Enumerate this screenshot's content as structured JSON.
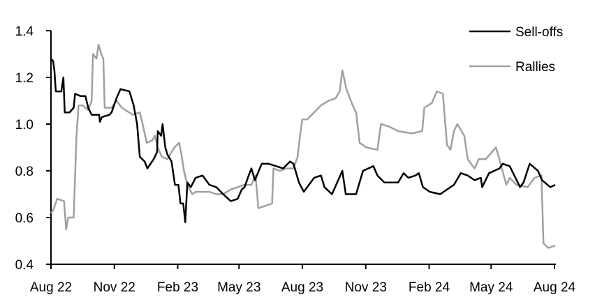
{
  "chart_data": {
    "type": "line",
    "title": "",
    "xlabel": "",
    "ylabel": "",
    "ylim": [
      0.4,
      1.4
    ],
    "yticks": [
      "0.4",
      "0.6",
      "0.8",
      "1.0",
      "1.2",
      "1.4"
    ],
    "xlim": [
      "2022-08-01",
      "2024-08-01"
    ],
    "xticks": [
      {
        "date": "2022-08-01",
        "label": "Aug 22"
      },
      {
        "date": "2022-11-01",
        "label": "Nov 22"
      },
      {
        "date": "2023-02-01",
        "label": "Feb 23"
      },
      {
        "date": "2023-05-01",
        "label": "May 23"
      },
      {
        "date": "2023-08-01",
        "label": "Aug 23"
      },
      {
        "date": "2023-11-01",
        "label": "Nov 23"
      },
      {
        "date": "2024-02-01",
        "label": "Feb 24"
      },
      {
        "date": "2024-05-01",
        "label": "May 24"
      },
      {
        "date": "2024-08-01",
        "label": "Aug 24"
      }
    ],
    "grid": false,
    "legend_position": "top-right",
    "series": [
      {
        "name": "Sell-offs",
        "color": "#000000",
        "points": [
          [
            "2022-08-01",
            1.28
          ],
          [
            "2022-08-04",
            1.27
          ],
          [
            "2022-08-06",
            1.23
          ],
          [
            "2022-08-08",
            1.14
          ],
          [
            "2022-08-16",
            1.14
          ],
          [
            "2022-08-19",
            1.2
          ],
          [
            "2022-08-21",
            1.05
          ],
          [
            "2022-08-28",
            1.05
          ],
          [
            "2022-09-03",
            1.07
          ],
          [
            "2022-09-05",
            1.13
          ],
          [
            "2022-09-13",
            1.12
          ],
          [
            "2022-09-20",
            1.12
          ],
          [
            "2022-09-24",
            1.07
          ],
          [
            "2022-09-29",
            1.04
          ],
          [
            "2022-10-10",
            1.04
          ],
          [
            "2022-10-11",
            1.01
          ],
          [
            "2022-10-14",
            1.03
          ],
          [
            "2022-10-25",
            1.04
          ],
          [
            "2022-10-28",
            1.05
          ],
          [
            "2022-11-04",
            1.11
          ],
          [
            "2022-11-10",
            1.15
          ],
          [
            "2022-11-23",
            1.14
          ],
          [
            "2022-11-29",
            1.08
          ],
          [
            "2022-12-04",
            1.0
          ],
          [
            "2022-12-08",
            0.86
          ],
          [
            "2022-12-15",
            0.84
          ],
          [
            "2022-12-19",
            0.81
          ],
          [
            "2022-12-28",
            0.85
          ],
          [
            "2023-01-02",
            0.88
          ],
          [
            "2023-01-03",
            0.97
          ],
          [
            "2023-01-08",
            0.95
          ],
          [
            "2023-01-10",
            1.0
          ],
          [
            "2023-01-14",
            0.9
          ],
          [
            "2023-01-17",
            0.87
          ],
          [
            "2023-01-23",
            0.84
          ],
          [
            "2023-01-28",
            0.74
          ],
          [
            "2023-02-02",
            0.74
          ],
          [
            "2023-02-05",
            0.66
          ],
          [
            "2023-02-09",
            0.66
          ],
          [
            "2023-02-12",
            0.58
          ],
          [
            "2023-02-15",
            0.75
          ],
          [
            "2023-02-20",
            0.73
          ],
          [
            "2023-02-27",
            0.77
          ],
          [
            "2023-03-09",
            0.78
          ],
          [
            "2023-03-19",
            0.74
          ],
          [
            "2023-03-29",
            0.73
          ],
          [
            "2023-04-08",
            0.7
          ],
          [
            "2023-04-19",
            0.67
          ],
          [
            "2023-04-29",
            0.68
          ],
          [
            "2023-05-05",
            0.72
          ],
          [
            "2023-05-09",
            0.73
          ],
          [
            "2023-05-15",
            0.78
          ],
          [
            "2023-05-19",
            0.81
          ],
          [
            "2023-05-24",
            0.76
          ],
          [
            "2023-06-03",
            0.83
          ],
          [
            "2023-06-13",
            0.83
          ],
          [
            "2023-06-24",
            0.82
          ],
          [
            "2023-07-04",
            0.81
          ],
          [
            "2023-07-14",
            0.84
          ],
          [
            "2023-07-19",
            0.83
          ],
          [
            "2023-07-27",
            0.75
          ],
          [
            "2023-08-03",
            0.71
          ],
          [
            "2023-08-08",
            0.73
          ],
          [
            "2023-08-18",
            0.77
          ],
          [
            "2023-08-28",
            0.78
          ],
          [
            "2023-09-02",
            0.73
          ],
          [
            "2023-09-13",
            0.7
          ],
          [
            "2023-09-28",
            0.8
          ],
          [
            "2023-10-03",
            0.7
          ],
          [
            "2023-10-18",
            0.7
          ],
          [
            "2023-10-28",
            0.8
          ],
          [
            "2023-11-12",
            0.82
          ],
          [
            "2023-11-18",
            0.78
          ],
          [
            "2023-11-28",
            0.75
          ],
          [
            "2023-12-18",
            0.75
          ],
          [
            "2023-12-26",
            0.79
          ],
          [
            "2024-01-02",
            0.77
          ],
          [
            "2024-01-12",
            0.78
          ],
          [
            "2024-01-17",
            0.79
          ],
          [
            "2024-01-23",
            0.73
          ],
          [
            "2024-02-02",
            0.71
          ],
          [
            "2024-02-17",
            0.7
          ],
          [
            "2024-02-27",
            0.72
          ],
          [
            "2024-03-08",
            0.74
          ],
          [
            "2024-03-18",
            0.79
          ],
          [
            "2024-03-28",
            0.78
          ],
          [
            "2024-04-07",
            0.76
          ],
          [
            "2024-04-16",
            0.77
          ],
          [
            "2024-04-18",
            0.73
          ],
          [
            "2024-04-28",
            0.79
          ],
          [
            "2024-05-13",
            0.81
          ],
          [
            "2024-05-18",
            0.83
          ],
          [
            "2024-05-28",
            0.82
          ],
          [
            "2024-06-07",
            0.76
          ],
          [
            "2024-06-12",
            0.73
          ],
          [
            "2024-06-17",
            0.75
          ],
          [
            "2024-06-26",
            0.83
          ],
          [
            "2024-07-08",
            0.8
          ],
          [
            "2024-07-14",
            0.76
          ],
          [
            "2024-07-26",
            0.73
          ],
          [
            "2024-08-02",
            0.74
          ]
        ]
      },
      {
        "name": "Rallies",
        "color": "#a0a0a0",
        "points": [
          [
            "2022-08-01",
            0.62
          ],
          [
            "2022-08-04",
            0.63
          ],
          [
            "2022-08-10",
            0.68
          ],
          [
            "2022-08-20",
            0.67
          ],
          [
            "2022-08-23",
            0.55
          ],
          [
            "2022-08-26",
            0.6
          ],
          [
            "2022-09-03",
            0.6
          ],
          [
            "2022-09-07",
            0.95
          ],
          [
            "2022-09-10",
            1.08
          ],
          [
            "2022-09-16",
            1.08
          ],
          [
            "2022-09-24",
            1.06
          ],
          [
            "2022-09-29",
            1.1
          ],
          [
            "2022-10-01",
            1.3
          ],
          [
            "2022-10-06",
            1.28
          ],
          [
            "2022-10-09",
            1.34
          ],
          [
            "2022-10-13",
            1.3
          ],
          [
            "2022-10-16",
            1.28
          ],
          [
            "2022-10-18",
            1.07
          ],
          [
            "2022-10-28",
            1.07
          ],
          [
            "2022-11-04",
            1.1
          ],
          [
            "2022-11-12",
            1.07
          ],
          [
            "2022-11-17",
            1.06
          ],
          [
            "2022-11-28",
            1.04
          ],
          [
            "2022-12-08",
            1.05
          ],
          [
            "2022-12-12",
            1.0
          ],
          [
            "2022-12-18",
            0.92
          ],
          [
            "2022-12-26",
            0.93
          ],
          [
            "2022-12-30",
            0.95
          ],
          [
            "2023-01-03",
            0.9
          ],
          [
            "2023-01-09",
            0.86
          ],
          [
            "2023-01-17",
            0.85
          ],
          [
            "2023-01-27",
            0.9
          ],
          [
            "2023-02-03",
            0.92
          ],
          [
            "2023-02-07",
            0.86
          ],
          [
            "2023-02-10",
            0.8
          ],
          [
            "2023-02-15",
            0.74
          ],
          [
            "2023-02-22",
            0.7
          ],
          [
            "2023-02-27",
            0.71
          ],
          [
            "2023-03-19",
            0.71
          ],
          [
            "2023-03-29",
            0.7
          ],
          [
            "2023-04-08",
            0.7
          ],
          [
            "2023-04-19",
            0.72
          ],
          [
            "2023-04-29",
            0.73
          ],
          [
            "2023-05-09",
            0.74
          ],
          [
            "2023-05-19",
            0.74
          ],
          [
            "2023-05-25",
            0.78
          ],
          [
            "2023-05-29",
            0.64
          ],
          [
            "2023-06-08",
            0.65
          ],
          [
            "2023-06-18",
            0.66
          ],
          [
            "2023-06-20",
            0.81
          ],
          [
            "2023-06-29",
            0.8
          ],
          [
            "2023-07-09",
            0.81
          ],
          [
            "2023-07-19",
            0.81
          ],
          [
            "2023-07-25",
            0.86
          ],
          [
            "2023-07-29",
            0.96
          ],
          [
            "2023-08-01",
            1.02
          ],
          [
            "2023-08-08",
            1.02
          ],
          [
            "2023-08-18",
            1.05
          ],
          [
            "2023-08-28",
            1.08
          ],
          [
            "2023-09-08",
            1.1
          ],
          [
            "2023-09-18",
            1.11
          ],
          [
            "2023-09-24",
            1.14
          ],
          [
            "2023-09-28",
            1.23
          ],
          [
            "2023-10-04",
            1.15
          ],
          [
            "2023-10-13",
            1.08
          ],
          [
            "2023-10-18",
            1.05
          ],
          [
            "2023-10-23",
            0.92
          ],
          [
            "2023-11-02",
            0.9
          ],
          [
            "2023-11-18",
            0.89
          ],
          [
            "2023-11-23",
            1.0
          ],
          [
            "2023-12-04",
            0.99
          ],
          [
            "2023-12-18",
            0.97
          ],
          [
            "2024-01-07",
            0.96
          ],
          [
            "2024-01-22",
            0.97
          ],
          [
            "2024-01-25",
            1.07
          ],
          [
            "2024-02-05",
            1.09
          ],
          [
            "2024-02-12",
            1.14
          ],
          [
            "2024-02-21",
            1.13
          ],
          [
            "2024-02-27",
            0.91
          ],
          [
            "2024-03-03",
            0.89
          ],
          [
            "2024-03-08",
            0.97
          ],
          [
            "2024-03-13",
            1.0
          ],
          [
            "2024-03-23",
            0.95
          ],
          [
            "2024-03-28",
            0.85
          ],
          [
            "2024-04-07",
            0.81
          ],
          [
            "2024-04-13",
            0.85
          ],
          [
            "2024-04-23",
            0.85
          ],
          [
            "2024-05-08",
            0.9
          ],
          [
            "2024-05-13",
            0.85
          ],
          [
            "2024-05-23",
            0.74
          ],
          [
            "2024-05-28",
            0.77
          ],
          [
            "2024-06-07",
            0.74
          ],
          [
            "2024-06-23",
            0.73
          ],
          [
            "2024-07-03",
            0.77
          ],
          [
            "2024-07-13",
            0.78
          ],
          [
            "2024-07-16",
            0.49
          ],
          [
            "2024-07-23",
            0.47
          ],
          [
            "2024-08-02",
            0.48
          ]
        ]
      }
    ]
  }
}
